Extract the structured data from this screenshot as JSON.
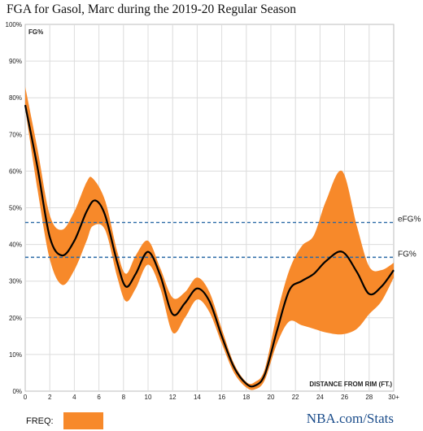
{
  "title": "FGA for Gasol, Marc during the 2019-20 Regular Season",
  "footer": {
    "freq_label": "FREQ:",
    "brand": "NBA.com/Stats"
  },
  "colors": {
    "band": "#f7892a",
    "line": "#000000",
    "reference": "#2b6aa6",
    "brand": "#1a4c8a"
  },
  "chart_data": {
    "type": "area",
    "title": "FGA for Gasol, Marc during the 2019-20 Regular Season",
    "ylabel": "FG%",
    "xlabel": "DISTANCE FROM RIM (FT.)",
    "ylim": [
      0,
      100
    ],
    "xlim": [
      0,
      30
    ],
    "yticks": [
      "0%",
      "10%",
      "20%",
      "30%",
      "40%",
      "50%",
      "60%",
      "70%",
      "80%",
      "90%",
      "100%"
    ],
    "xticks": [
      "0",
      "2",
      "4",
      "6",
      "8",
      "10",
      "12",
      "14",
      "16",
      "18",
      "20",
      "22",
      "24",
      "26",
      "28",
      "30+"
    ],
    "grid": true,
    "reference_lines": [
      {
        "name": "eFG%",
        "value": 46
      },
      {
        "name": "FG%",
        "value": 36.5
      }
    ],
    "series": [
      {
        "name": "FG%",
        "x": [
          0,
          1,
          2,
          3,
          4,
          5,
          5.7,
          6.5,
          7.5,
          8.2,
          9,
          10,
          11,
          12,
          13,
          14,
          15,
          16,
          17,
          18,
          18.7,
          19.5,
          20.5,
          21.5,
          22.5,
          23.5,
          24.5,
          25.8,
          27,
          28,
          29,
          30
        ],
        "y": [
          78,
          61,
          42,
          37,
          41,
          49,
          52,
          48,
          35,
          28.5,
          32,
          38,
          31.5,
          21,
          24,
          28,
          24.5,
          15,
          6.5,
          2,
          1.5,
          4.5,
          16.5,
          27.5,
          30,
          32,
          35.5,
          38,
          32.5,
          26.5,
          28.5,
          33
        ]
      }
    ],
    "band": {
      "name": "FREQ:",
      "x": [
        0,
        1,
        2,
        3,
        4,
        5,
        5.5,
        6.5,
        7.5,
        8.2,
        9,
        10,
        11,
        12,
        13,
        14,
        15,
        16,
        17,
        18,
        18.7,
        19.5,
        20.5,
        21.5,
        22.5,
        23.5,
        24.5,
        25.8,
        27,
        28,
        29,
        30
      ],
      "upper": [
        83,
        66,
        48,
        44,
        49,
        57,
        58,
        52,
        38,
        32,
        37,
        41,
        33.5,
        25.5,
        27,
        31,
        27,
        17,
        7.5,
        2.5,
        2.5,
        6,
        21,
        33,
        39.5,
        42.5,
        52,
        60,
        45,
        34,
        33,
        35
      ],
      "lower": [
        77,
        55,
        36,
        29,
        33,
        41,
        45,
        44,
        31,
        24.5,
        28,
        34.5,
        28,
        16,
        20,
        25,
        21.5,
        13,
        5,
        1,
        0.5,
        3,
        13,
        19,
        18,
        17,
        16,
        15.5,
        17,
        21,
        24.5,
        31
      ]
    }
  }
}
